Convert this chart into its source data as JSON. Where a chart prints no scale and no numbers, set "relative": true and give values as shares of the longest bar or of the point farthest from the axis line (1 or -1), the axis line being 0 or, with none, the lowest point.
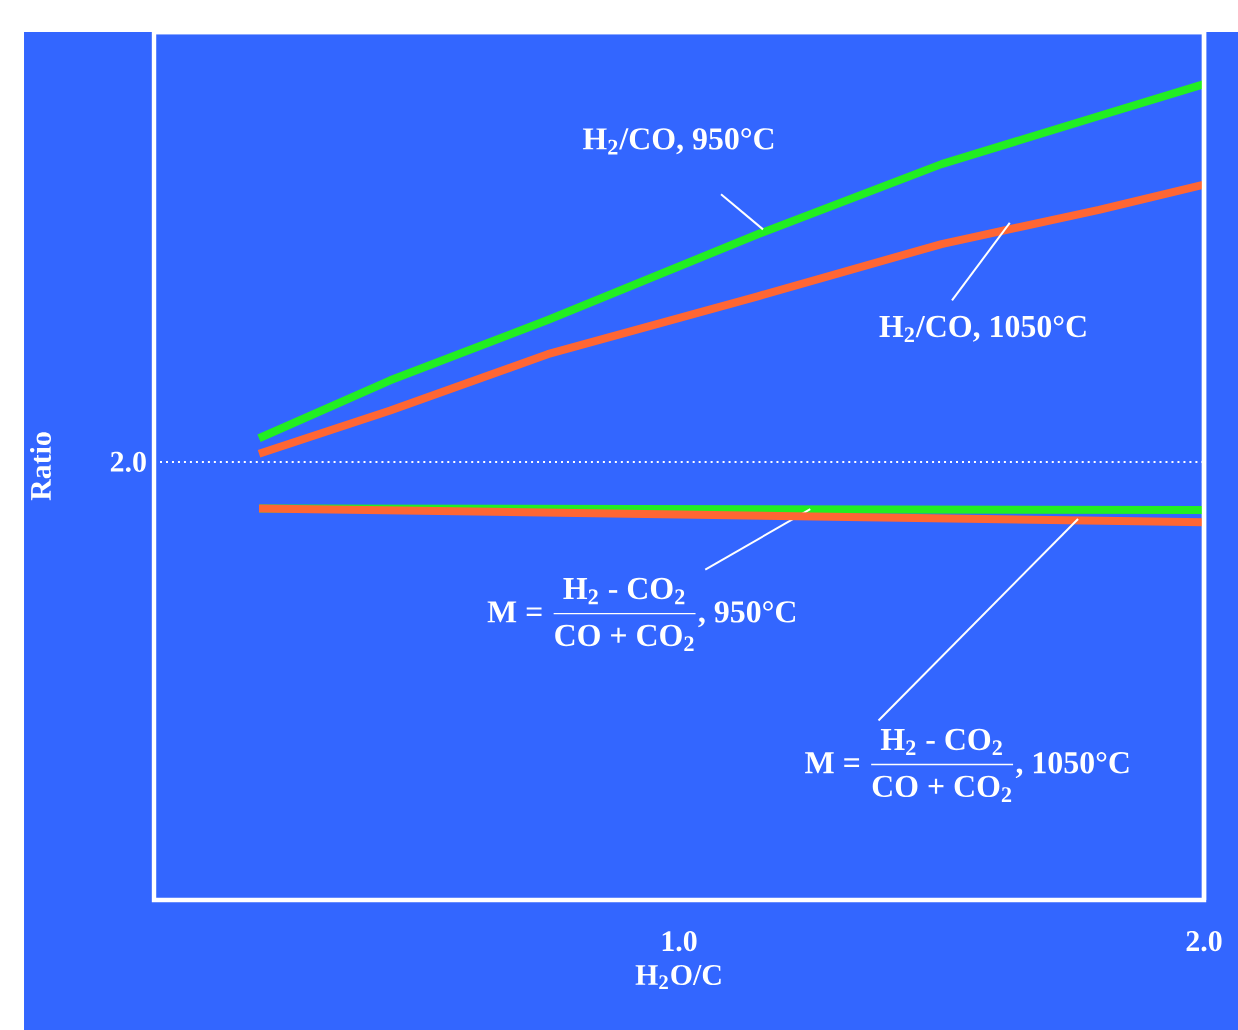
{
  "chart_data": {
    "type": "line",
    "relative": true,
    "xlabel": "H$_{2}$O/C",
    "ylabel": "Ratio",
    "xlim": [
      0,
      2.0
    ],
    "xticks": [
      {
        "value": 1.0,
        "label": "1.0"
      },
      {
        "value": 2.0,
        "label": "2.0"
      }
    ],
    "x": [
      0.2,
      0.45,
      0.75,
      1.15,
      1.5,
      1.8,
      2.0
    ],
    "series": [
      {
        "name": "H$_{2}$/CO, 950°C",
        "color": "#22ee22",
        "values": [
          0.566,
          0.637,
          0.711,
          0.816,
          0.902,
          0.961,
          1.0
        ]
      },
      {
        "name": "H$_{2}$/CO, 1050°C",
        "color": "#ff6633",
        "values": [
          0.547,
          0.6,
          0.669,
          0.74,
          0.804,
          0.846,
          0.877
        ]
      },
      {
        "name": "\\text{M = }\\frac{\\text{H}_{\\text{2}}\\text{ - CO}_{\\text{2}}}{\\text{CO + CO}_{\\text{2}}}\\text{, 950°C}",
        "color": "#22ee22",
        "values": [
          0.48,
          null,
          null,
          null,
          null,
          null,
          0.478
        ]
      },
      {
        "name": "\\text{M = }\\frac{\\text{H}_{\\text{2}}\\text{ - CO}_{\\text{2}}}{\\text{CO + CO}_{\\text{2}}}\\text{, 1050°C}",
        "color": "#ff6633",
        "values": [
          0.48,
          null,
          null,
          null,
          null,
          null,
          0.463
        ]
      }
    ],
    "ref_lines": [
      {
        "axis": "y",
        "value": 0.537,
        "color": "#ffffff",
        "line_style": "dotted"
      }
    ],
    "annotations": [
      "2.0"
    ],
    "grid": false,
    "marker": "none",
    "line_style": "solid"
  }
}
